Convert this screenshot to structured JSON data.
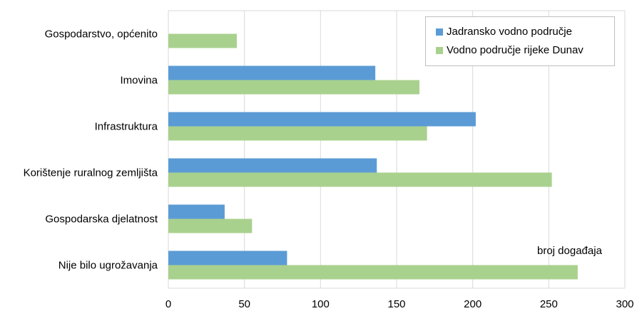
{
  "chart_data": {
    "type": "bar",
    "orientation": "horizontal",
    "categories": [
      "Gospodarstvo, općenito",
      "Imovina",
      "Infrastruktura",
      "Korištenje ruralnog zemljišta",
      "Gospodarska djelatnost",
      "Nije bilo ugrožavanja"
    ],
    "series": [
      {
        "name": "Jadransko vodno područje",
        "color": "#5b9bd5",
        "values": [
          0,
          136,
          202,
          137,
          37,
          78
        ]
      },
      {
        "name": "Vodno područje rijeke Dunav",
        "color": "#a9d18e",
        "values": [
          45,
          165,
          170,
          252,
          55,
          269
        ]
      }
    ],
    "xlim": [
      0,
      300
    ],
    "xticks": [
      "0",
      "50",
      "100",
      "150",
      "200",
      "250",
      "300"
    ],
    "grid": true,
    "legend_position": "top-right",
    "annotation": "broj događaja"
  }
}
